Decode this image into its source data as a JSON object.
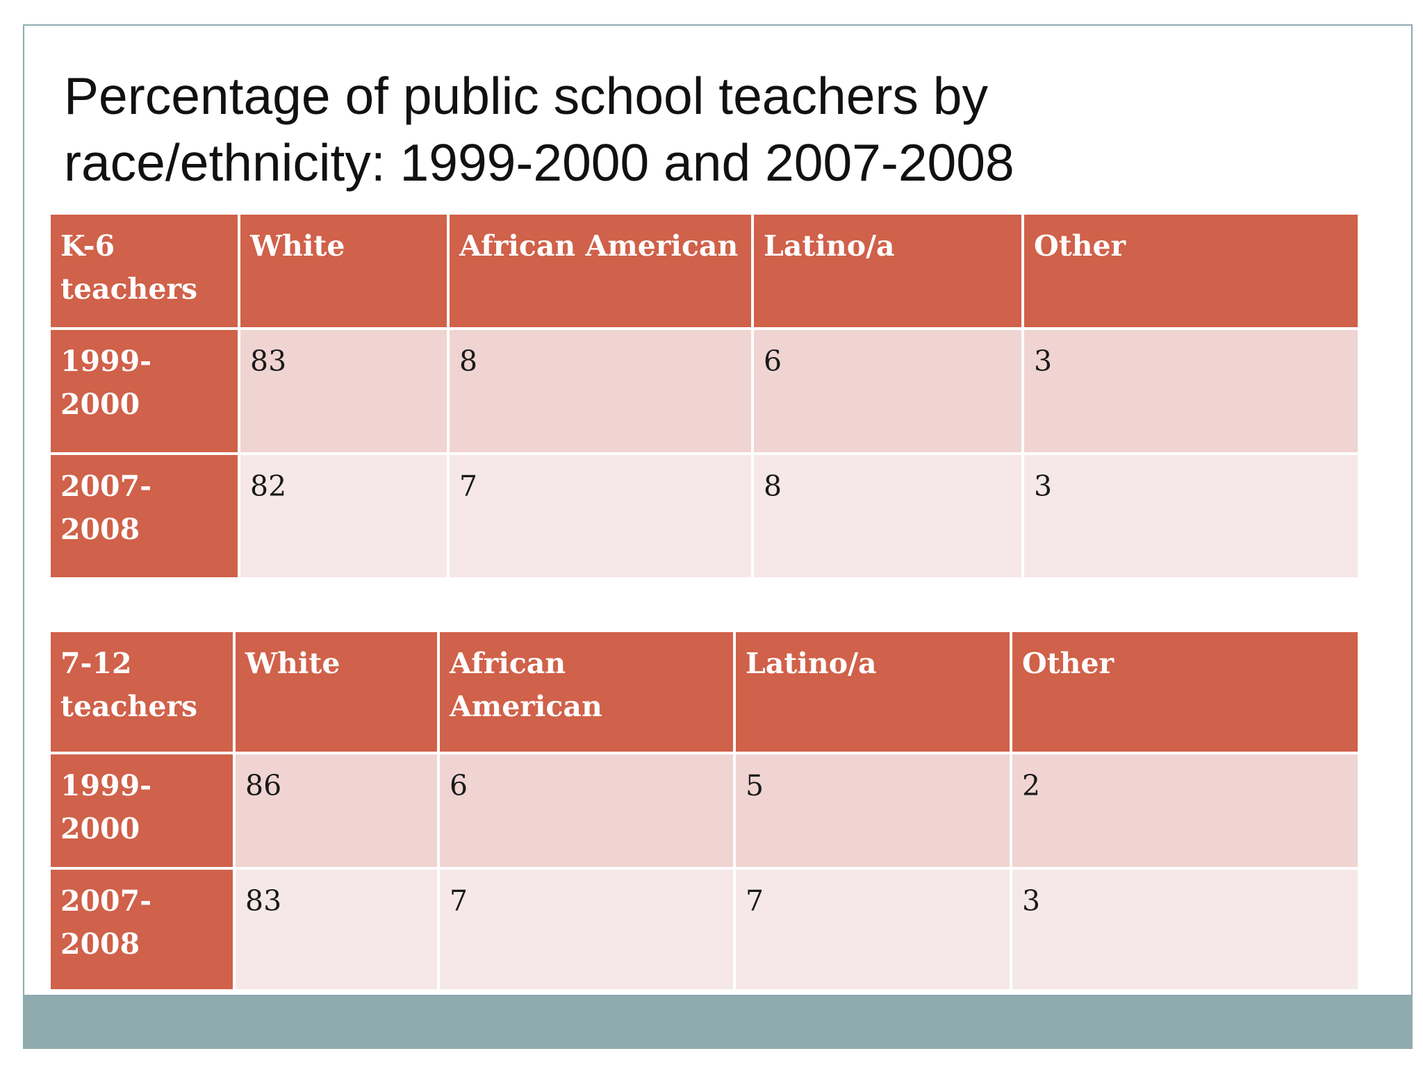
{
  "title": {
    "line1": "Percentage of public school teachers by",
    "line2": "race/ethnicity:  1999-2000 and 2007-2008"
  },
  "tables": [
    {
      "headers": [
        "K-6 teachers",
        "White",
        "African American",
        "Latino/a",
        "Other"
      ],
      "rows": [
        {
          "label": "1999-2000",
          "values": [
            "83",
            "8",
            "6",
            "3"
          ]
        },
        {
          "label": "2007-2008",
          "values": [
            "82",
            "7",
            "8",
            "3"
          ]
        }
      ]
    },
    {
      "headers": [
        "7-12 teachers",
        "White",
        "African American",
        "Latino/a",
        "Other"
      ],
      "rows": [
        {
          "label": "1999-2000",
          "values": [
            "86",
            "6",
            "5",
            "2"
          ]
        },
        {
          "label": "2007-2008",
          "values": [
            "83",
            "7",
            "7",
            "3"
          ]
        }
      ]
    }
  ],
  "colors": {
    "header_fill": "#d0614a",
    "band1_fill": "#efd4d2",
    "band2_fill": "#f6e8e8",
    "footer_bar": "#8fabae"
  }
}
